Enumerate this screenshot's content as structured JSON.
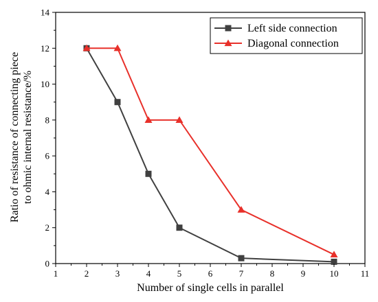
{
  "chart_data": {
    "type": "line",
    "xlabel": "Number of single cells in parallel",
    "ylabel": [
      "Ratio of resistance of connecting piece",
      "to ohmic internal resistance/%"
    ],
    "xlim": [
      1,
      11
    ],
    "ylim": [
      0,
      14
    ],
    "xticks": [
      1,
      2,
      3,
      4,
      5,
      6,
      7,
      8,
      9,
      10,
      11
    ],
    "yticks": [
      0,
      2,
      4,
      6,
      8,
      10,
      12,
      14
    ],
    "grid": false,
    "legend_position": "top-right",
    "series": [
      {
        "name": "Left side connection",
        "color": "#404040",
        "marker": "square",
        "x": [
          2,
          3,
          4,
          5,
          7,
          10
        ],
        "y": [
          12,
          9,
          5,
          2,
          0.3,
          0.1
        ]
      },
      {
        "name": "Diagonal connection",
        "color": "#e8302a",
        "marker": "triangle",
        "x": [
          2,
          3,
          4,
          5,
          7,
          10
        ],
        "y": [
          12,
          12,
          8,
          8,
          3,
          0.5
        ]
      }
    ]
  }
}
